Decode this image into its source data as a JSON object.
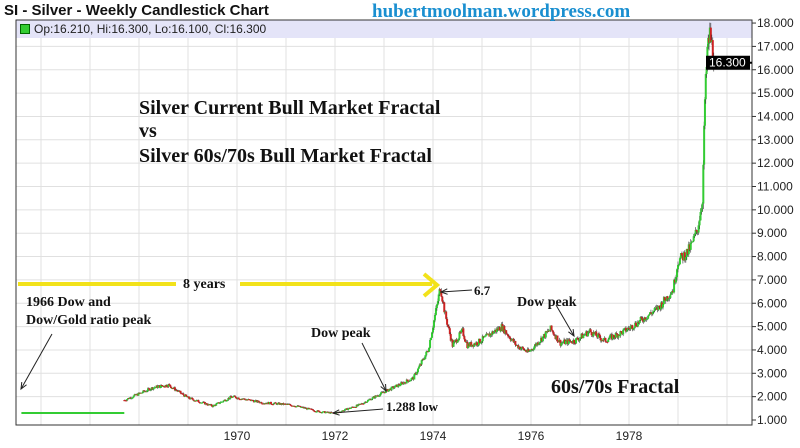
{
  "header": {
    "title": "SI - Silver - Weekly Candlestick Chart",
    "site": "hubertmoolman.wordpress.com",
    "ohlc": "Op:16.210, Hi:16.300, Lo:16.100, Cl:16.300"
  },
  "annotations": {
    "headline_1": "Silver Current Bull Market Fractal",
    "headline_2": "vs",
    "headline_3": "Silver 60s/70s Bull Market Fractal",
    "years_label": "8 years",
    "peak_1966": "1966 Dow and",
    "peak_1966_2": "Dow/Gold ratio peak",
    "dow_peak_1": "Dow peak",
    "dow_peak_2": "Dow peak",
    "peak_value": "6.7",
    "low_value": "1.288 low",
    "fractal_label": "60s/70s Fractal"
  },
  "colors": {
    "up": "#33cc33",
    "down": "#cc2222",
    "arrow": "#f2e21a",
    "header_band": "#e4e4f8",
    "site": "#1a8fd0"
  },
  "chart_data": {
    "type": "candlestick",
    "title": "SI - Silver - Weekly Candlestick Chart",
    "xlabel": "",
    "ylabel": "",
    "x_ticks": [
      "1970",
      "1972",
      "1974",
      "1976",
      "1978"
    ],
    "y_ticks": [
      "1.000",
      "2.000",
      "3.000",
      "4.000",
      "5.000",
      "6.000",
      "7.000",
      "8.000",
      "9.000",
      "10.000",
      "11.000",
      "12.000",
      "13.000",
      "14.000",
      "15.000",
      "16.000",
      "17.000",
      "18.000"
    ],
    "ylim": [
      1,
      18
    ],
    "xlim": [
      1965.6,
      1980.3
    ],
    "last_price_label": "16.300",
    "grid": true,
    "flat_line": {
      "from": 1965.6,
      "to": 1967.7,
      "value": 1.3
    },
    "series": [
      {
        "x": [
          1967.7,
          1968.3,
          1968.6,
          1969.0,
          1969.5,
          1969.9,
          1970.5,
          1971.1,
          1971.7,
          1972.0,
          1972.5,
          1973.0,
          1973.6,
          1973.9,
          1974.1,
          1974.15,
          1974.25,
          1974.4,
          1974.6,
          1974.7,
          1974.9,
          1975.4,
          1975.7,
          1975.95,
          1976.4,
          1976.6,
          1976.9,
          1977.2,
          1977.5,
          1977.9,
          1978.2,
          1978.6,
          1978.9,
          1979.0,
          1979.2,
          1979.3,
          1979.4,
          1979.5,
          1979.55,
          1979.6,
          1979.65,
          1979.75
        ],
        "y": [
          1.85,
          2.4,
          2.5,
          1.95,
          1.6,
          2.0,
          1.75,
          1.65,
          1.35,
          1.29,
          1.65,
          2.2,
          2.8,
          4.0,
          6.1,
          6.7,
          5.5,
          4.2,
          4.8,
          4.2,
          4.3,
          5.0,
          4.2,
          3.9,
          4.9,
          4.3,
          4.4,
          4.8,
          4.4,
          4.8,
          5.2,
          5.8,
          6.6,
          7.8,
          8.2,
          8.6,
          9.2,
          10.5,
          14.7,
          16.8,
          17.5,
          16.3
        ]
      }
    ]
  }
}
